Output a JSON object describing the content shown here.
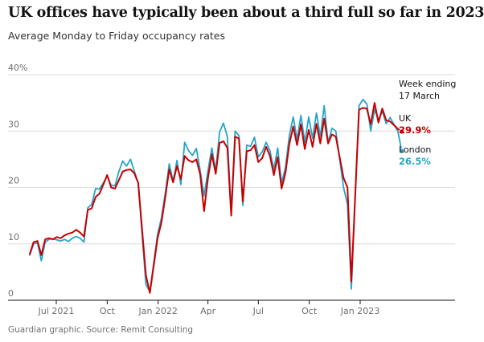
{
  "title": "UK offices have typically been about a third full so far in 2023",
  "subtitle": "Average Monday to Friday occupancy rates",
  "source": "Guardian graphic. Source: Remit Consulting",
  "chart_data": {
    "type": "line",
    "title": "UK offices have typically been about a third full so far in 2023",
    "subtitle": "Average Monday to Friday occupancy rates",
    "y_unit": "%",
    "ylim": [
      0,
      40
    ],
    "y_ticks": [
      {
        "value": 0,
        "label": "0"
      },
      {
        "value": 10,
        "label": "10"
      },
      {
        "value": 20,
        "label": "20"
      },
      {
        "value": 30,
        "label": "30"
      },
      {
        "value": 40,
        "label": "40%"
      }
    ],
    "x_ticks": [
      {
        "date": "2021-07-01",
        "label": "Jul 2021"
      },
      {
        "date": "2021-10-01",
        "label": "Oct"
      },
      {
        "date": "2022-01-01",
        "label": "Jan 2022"
      },
      {
        "date": "2022-04-01",
        "label": "Apr"
      },
      {
        "date": "2022-07-01",
        "label": "Jul"
      },
      {
        "date": "2022-10-01",
        "label": "Oct"
      },
      {
        "date": "2023-01-01",
        "label": "Jan 2023"
      }
    ],
    "grid": true,
    "annotation": {
      "line1": "Week ending",
      "line2": "17 March"
    },
    "colors": {
      "UK": "#c70000",
      "London": "#27a4c9"
    },
    "series": [
      {
        "name": "UK",
        "last_value_label": "29.9%",
        "points": [
          [
            "2021-05-14",
            8.2
          ],
          [
            "2021-05-21",
            10.3
          ],
          [
            "2021-05-28",
            10.5
          ],
          [
            "2021-06-04",
            8.0
          ],
          [
            "2021-06-11",
            10.8
          ],
          [
            "2021-06-18",
            11.0
          ],
          [
            "2021-06-25",
            10.8
          ],
          [
            "2021-07-02",
            11.2
          ],
          [
            "2021-07-09",
            11.0
          ],
          [
            "2021-07-16",
            11.5
          ],
          [
            "2021-07-23",
            11.8
          ],
          [
            "2021-07-30",
            12.0
          ],
          [
            "2021-08-06",
            12.5
          ],
          [
            "2021-08-13",
            12.0
          ],
          [
            "2021-08-20",
            11.3
          ],
          [
            "2021-08-27",
            16.0
          ],
          [
            "2021-09-03",
            16.3
          ],
          [
            "2021-09-10",
            18.3
          ],
          [
            "2021-09-17",
            18.9
          ],
          [
            "2021-09-24",
            20.5
          ],
          [
            "2021-10-01",
            22.2
          ],
          [
            "2021-10-08",
            20.0
          ],
          [
            "2021-10-15",
            19.8
          ],
          [
            "2021-10-22",
            21.3
          ],
          [
            "2021-10-29",
            22.8
          ],
          [
            "2021-11-05",
            23.1
          ],
          [
            "2021-11-12",
            23.2
          ],
          [
            "2021-11-19",
            22.5
          ],
          [
            "2021-11-26",
            20.8
          ],
          [
            "2021-12-10",
            4.4
          ],
          [
            "2021-12-17",
            1.3
          ],
          [
            "2021-12-31",
            11.0
          ],
          [
            "2022-01-07",
            13.8
          ],
          [
            "2022-01-14",
            18.3
          ],
          [
            "2022-01-21",
            23.2
          ],
          [
            "2022-01-28",
            20.9
          ],
          [
            "2022-02-04",
            23.8
          ],
          [
            "2022-02-11",
            21.5
          ],
          [
            "2022-02-18",
            25.6
          ],
          [
            "2022-02-25",
            24.8
          ],
          [
            "2022-03-04",
            24.5
          ],
          [
            "2022-03-11",
            25.0
          ],
          [
            "2022-03-18",
            22.3
          ],
          [
            "2022-03-25",
            15.8
          ],
          [
            "2022-04-01",
            21.7
          ],
          [
            "2022-04-08",
            25.9
          ],
          [
            "2022-04-15",
            22.4
          ],
          [
            "2022-04-22",
            27.9
          ],
          [
            "2022-04-29",
            28.2
          ],
          [
            "2022-05-06",
            27.0
          ],
          [
            "2022-05-13",
            15.0
          ],
          [
            "2022-05-20",
            29.0
          ],
          [
            "2022-05-27",
            28.7
          ],
          [
            "2022-06-03",
            17.5
          ],
          [
            "2022-06-10",
            26.4
          ],
          [
            "2022-06-17",
            26.6
          ],
          [
            "2022-06-24",
            27.5
          ],
          [
            "2022-07-01",
            24.5
          ],
          [
            "2022-07-08",
            25.2
          ],
          [
            "2022-07-15",
            27.2
          ],
          [
            "2022-07-22",
            25.6
          ],
          [
            "2022-07-29",
            22.2
          ],
          [
            "2022-08-05",
            25.4
          ],
          [
            "2022-08-12",
            19.8
          ],
          [
            "2022-08-19",
            22.5
          ],
          [
            "2022-08-26",
            27.7
          ],
          [
            "2022-09-02",
            30.8
          ],
          [
            "2022-09-09",
            27.5
          ],
          [
            "2022-09-16",
            31.2
          ],
          [
            "2022-09-23",
            26.8
          ],
          [
            "2022-09-30",
            30.2
          ],
          [
            "2022-10-07",
            27.2
          ],
          [
            "2022-10-14",
            31.3
          ],
          [
            "2022-10-21",
            27.8
          ],
          [
            "2022-10-28",
            32.2
          ],
          [
            "2022-11-04",
            27.8
          ],
          [
            "2022-11-11",
            29.4
          ],
          [
            "2022-11-18",
            29.0
          ],
          [
            "2022-12-02",
            21.7
          ],
          [
            "2022-12-09",
            20.0
          ],
          [
            "2022-12-16",
            3.3
          ],
          [
            "2022-12-30",
            33.8
          ],
          [
            "2023-01-06",
            34.1
          ],
          [
            "2023-01-13",
            34.0
          ],
          [
            "2023-01-20",
            31.2
          ],
          [
            "2023-01-27",
            35.0
          ],
          [
            "2023-02-03",
            31.5
          ],
          [
            "2023-02-10",
            34.0
          ],
          [
            "2023-02-17",
            31.9
          ],
          [
            "2023-02-24",
            31.7
          ],
          [
            "2023-03-10",
            30.4
          ],
          [
            "2023-03-17",
            29.9
          ]
        ]
      },
      {
        "name": "London",
        "last_value_label": "26.5%",
        "points": [
          [
            "2021-05-14",
            8.0
          ],
          [
            "2021-05-21",
            10.0
          ],
          [
            "2021-05-28",
            10.2
          ],
          [
            "2021-06-04",
            7.0
          ],
          [
            "2021-06-11",
            10.3
          ],
          [
            "2021-06-18",
            10.8
          ],
          [
            "2021-06-25",
            10.9
          ],
          [
            "2021-07-02",
            10.7
          ],
          [
            "2021-07-09",
            10.5
          ],
          [
            "2021-07-16",
            10.8
          ],
          [
            "2021-07-23",
            10.4
          ],
          [
            "2021-07-30",
            11.0
          ],
          [
            "2021-08-06",
            11.3
          ],
          [
            "2021-08-13",
            11.0
          ],
          [
            "2021-08-20",
            10.3
          ],
          [
            "2021-08-27",
            16.4
          ],
          [
            "2021-09-03",
            17.0
          ],
          [
            "2021-09-10",
            19.8
          ],
          [
            "2021-09-17",
            19.7
          ],
          [
            "2021-09-24",
            20.8
          ],
          [
            "2021-10-01",
            22.0
          ],
          [
            "2021-10-08",
            20.4
          ],
          [
            "2021-10-15",
            20.3
          ],
          [
            "2021-10-22",
            22.8
          ],
          [
            "2021-10-29",
            24.7
          ],
          [
            "2021-11-05",
            23.8
          ],
          [
            "2021-11-12",
            25.0
          ],
          [
            "2021-11-19",
            22.9
          ],
          [
            "2021-11-26",
            20.8
          ],
          [
            "2021-12-10",
            2.8
          ],
          [
            "2021-12-17",
            1.5
          ],
          [
            "2021-12-31",
            11.7
          ],
          [
            "2022-01-07",
            14.6
          ],
          [
            "2022-01-14",
            19.0
          ],
          [
            "2022-01-21",
            24.2
          ],
          [
            "2022-01-28",
            21.1
          ],
          [
            "2022-02-04",
            24.8
          ],
          [
            "2022-02-11",
            20.5
          ],
          [
            "2022-02-18",
            28.0
          ],
          [
            "2022-02-25",
            26.5
          ],
          [
            "2022-03-04",
            25.7
          ],
          [
            "2022-03-11",
            26.9
          ],
          [
            "2022-03-18",
            23.0
          ],
          [
            "2022-03-25",
            18.5
          ],
          [
            "2022-04-01",
            23.0
          ],
          [
            "2022-04-08",
            27.0
          ],
          [
            "2022-04-15",
            22.9
          ],
          [
            "2022-04-22",
            29.8
          ],
          [
            "2022-04-29",
            31.4
          ],
          [
            "2022-05-06",
            29.0
          ],
          [
            "2022-05-13",
            15.6
          ],
          [
            "2022-05-20",
            30.0
          ],
          [
            "2022-05-27",
            29.2
          ],
          [
            "2022-06-03",
            16.8
          ],
          [
            "2022-06-10",
            27.5
          ],
          [
            "2022-06-17",
            27.3
          ],
          [
            "2022-06-24",
            28.9
          ],
          [
            "2022-07-01",
            25.4
          ],
          [
            "2022-07-08",
            26.3
          ],
          [
            "2022-07-15",
            28.0
          ],
          [
            "2022-07-22",
            26.5
          ],
          [
            "2022-07-29",
            23.2
          ],
          [
            "2022-08-05",
            27.0
          ],
          [
            "2022-08-12",
            20.8
          ],
          [
            "2022-08-19",
            23.5
          ],
          [
            "2022-08-26",
            29.2
          ],
          [
            "2022-09-02",
            32.5
          ],
          [
            "2022-09-09",
            28.5
          ],
          [
            "2022-09-16",
            32.8
          ],
          [
            "2022-09-23",
            28.0
          ],
          [
            "2022-09-30",
            32.5
          ],
          [
            "2022-10-07",
            28.7
          ],
          [
            "2022-10-14",
            33.2
          ],
          [
            "2022-10-21",
            29.0
          ],
          [
            "2022-10-28",
            34.5
          ],
          [
            "2022-11-04",
            28.0
          ],
          [
            "2022-11-11",
            30.5
          ],
          [
            "2022-11-18",
            30.0
          ],
          [
            "2022-12-02",
            20.0
          ],
          [
            "2022-12-09",
            17.0
          ],
          [
            "2022-12-16",
            2.0
          ],
          [
            "2022-12-30",
            34.5
          ],
          [
            "2023-01-06",
            35.6
          ],
          [
            "2023-01-13",
            34.8
          ],
          [
            "2023-01-20",
            30.0
          ],
          [
            "2023-01-27",
            33.8
          ],
          [
            "2023-02-03",
            32.0
          ],
          [
            "2023-02-10",
            33.5
          ],
          [
            "2023-02-17",
            31.3
          ],
          [
            "2023-02-24",
            32.4
          ],
          [
            "2023-03-10",
            30.0
          ],
          [
            "2023-03-17",
            26.5
          ]
        ]
      }
    ]
  }
}
